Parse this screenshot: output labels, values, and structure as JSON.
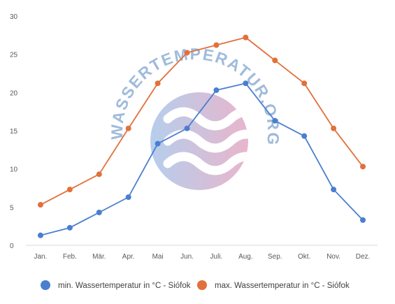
{
  "chart_data": {
    "type": "line",
    "categories": [
      "Jan.",
      "Feb.",
      "Mär.",
      "Apr.",
      "Mai",
      "Jun.",
      "Juli.",
      "Aug.",
      "Sep.",
      "Okt.",
      "Nov.",
      "Dez."
    ],
    "ylim": [
      0,
      30
    ],
    "yticks": [
      0,
      5,
      10,
      15,
      20,
      25,
      30
    ],
    "grid": false,
    "legend_position": "bottom",
    "series": [
      {
        "name": "min. Wassertemperatur in °C - Siófok",
        "color": "#4a7fcf",
        "values": [
          1.3,
          2.3,
          4.3,
          6.3,
          13.3,
          15.3,
          20.3,
          21.2,
          16.3,
          14.3,
          7.3,
          3.3
        ]
      },
      {
        "name": "max. Wassertemperatur in °C - Siófok",
        "color": "#e2703a",
        "values": [
          5.3,
          7.3,
          9.3,
          15.3,
          21.2,
          25.2,
          26.2,
          27.2,
          24.2,
          21.2,
          15.3,
          10.3
        ]
      }
    ]
  },
  "watermark": {
    "text": "WASSERTEMPERATUR.ORG",
    "icon": "waves-logo"
  }
}
